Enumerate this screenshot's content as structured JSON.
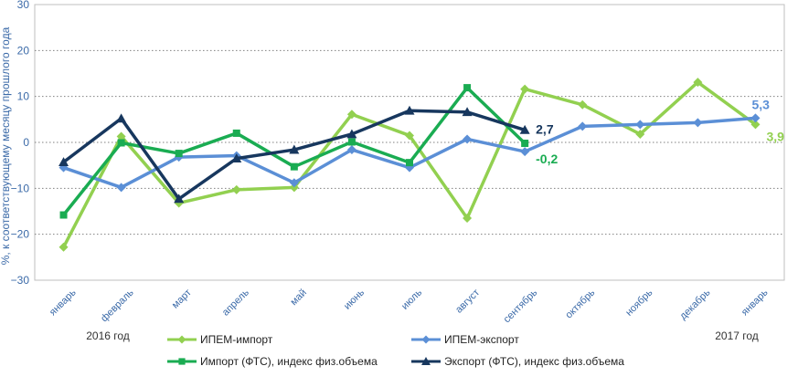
{
  "chart_data": {
    "type": "line",
    "ylabel": "%, к соответствующему месяцу прошлого года",
    "ylim": [
      -30,
      30
    ],
    "yticks": [
      30,
      20,
      10,
      0,
      -10,
      -20,
      -30
    ],
    "ytick_labels": [
      "30",
      "20",
      "10",
      "0",
      "−10",
      "−20",
      "−30"
    ],
    "categories": [
      "январь",
      "февраль",
      "март",
      "апрель",
      "май",
      "июнь",
      "июль",
      "август",
      "сентябрь",
      "октябрь",
      "ноябрь",
      "декабрь",
      "январь"
    ],
    "year_labels": [
      "2016 год",
      "2017 год"
    ],
    "grid": "horizontal dotted",
    "series": [
      {
        "name": "ИПЕМ-импорт",
        "color": "#92d050",
        "marker": "diamond",
        "values": [
          -22.8,
          1.3,
          -13.2,
          -10.3,
          -9.8,
          6.1,
          1.5,
          -16.5,
          11.6,
          8.2,
          1.8,
          13.1,
          3.9
        ],
        "end_label": "3,9"
      },
      {
        "name": "ИПЕМ-экспорт",
        "color": "#5b8fd6",
        "marker": "diamond",
        "values": [
          -5.5,
          -9.8,
          -3.2,
          -2.9,
          -8.8,
          -1.6,
          -5.5,
          0.7,
          -2.0,
          3.5,
          3.9,
          4.3,
          5.3
        ],
        "end_label": "5,3"
      },
      {
        "name": "Импорт (ФТС), индекс физ.объема",
        "color": "#1aac52",
        "marker": "square",
        "values": [
          -15.8,
          -0.1,
          -2.4,
          2.0,
          -5.3,
          0.1,
          -4.4,
          11.9,
          -0.2,
          null,
          null,
          null,
          null
        ],
        "end_label": "-0,2"
      },
      {
        "name": "Экспорт (ФТС), индекс физ.объема",
        "color": "#17375e",
        "marker": "triangle",
        "values": [
          -4.3,
          5.2,
          -12.3,
          -3.5,
          -1.6,
          1.8,
          6.9,
          6.6,
          2.7,
          null,
          null,
          null,
          null
        ],
        "end_label": "2,7"
      }
    ]
  }
}
